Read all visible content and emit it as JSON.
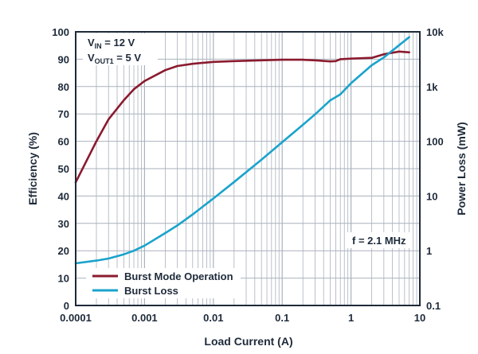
{
  "chart_data": {
    "type": "line",
    "xlabel": "Load Current (A)",
    "ylabel": "Efficiency (%)",
    "y2label": "Power Loss (mW)",
    "x_scale": "log",
    "y2_scale": "log",
    "xlim": [
      0.0001,
      10
    ],
    "ylim": [
      0,
      100
    ],
    "y2lim": [
      0.1,
      10000
    ],
    "x_ticks": [
      "0.0001",
      "0.001",
      "0.01",
      "0.1",
      "1",
      "10"
    ],
    "y_ticks": [
      "0",
      "10",
      "20",
      "30",
      "40",
      "50",
      "60",
      "70",
      "80",
      "90",
      "100"
    ],
    "y2_ticks": [
      "0.1",
      "1",
      "10",
      "100",
      "1k",
      "10k"
    ],
    "grid": true,
    "legend_position": "bottom-left",
    "annotations": {
      "vin": {
        "main": "V",
        "sub": "IN",
        "rest": " = 12 V"
      },
      "vout": {
        "main": "V",
        "sub": "OUT1",
        "rest": " = 5 V"
      },
      "freq": "f = 2.1 MHz"
    },
    "series": [
      {
        "name": "Burst Mode Operation",
        "axis": "left",
        "color": "#8b1a2e",
        "x": [
          0.0001,
          0.0002,
          0.0003,
          0.0005,
          0.0007,
          0.001,
          0.002,
          0.003,
          0.005,
          0.01,
          0.02,
          0.05,
          0.1,
          0.2,
          0.3,
          0.5,
          0.6,
          0.7,
          1,
          2,
          3,
          5,
          7
        ],
        "y": [
          45,
          60,
          68,
          75,
          79,
          82,
          86,
          87.5,
          88.3,
          89,
          89.3,
          89.6,
          89.8,
          89.8,
          89.6,
          89.2,
          89.3,
          90,
          90.2,
          90.5,
          91.8,
          92.8,
          92.5
        ]
      },
      {
        "name": "Burst Loss",
        "axis": "right",
        "color": "#1aa3cc",
        "x": [
          0.0001,
          0.0002,
          0.0003,
          0.0005,
          0.0007,
          0.001,
          0.002,
          0.003,
          0.005,
          0.01,
          0.02,
          0.05,
          0.1,
          0.2,
          0.3,
          0.5,
          0.7,
          1,
          2,
          3,
          5,
          7
        ],
        "y": [
          0.59,
          0.66,
          0.72,
          0.86,
          1,
          1.24,
          2.1,
          2.9,
          4.6,
          9,
          18,
          46,
          96,
          200,
          310,
          560,
          720,
          1150,
          2450,
          3400,
          5700,
          8000
        ]
      }
    ]
  }
}
